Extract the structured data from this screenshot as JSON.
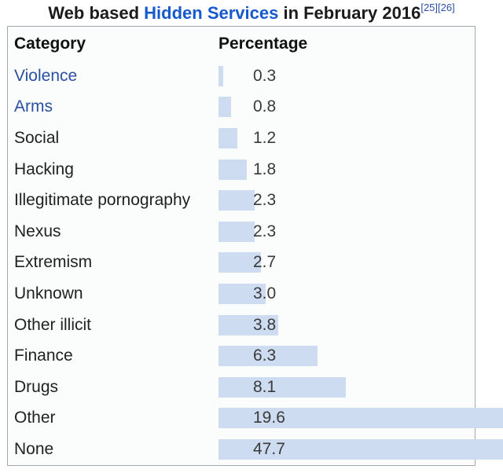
{
  "title": {
    "prefix": "Web based ",
    "link_text": "Hidden Services",
    "suffix": " in February 2016",
    "citations": [
      "[25]",
      "[26]"
    ]
  },
  "table": {
    "header_category": "Category",
    "header_percentage": "Percentage",
    "rows": [
      {
        "category": "Violence",
        "value": 0.3,
        "display": "0.3",
        "is_link": true
      },
      {
        "category": "Arms",
        "value": 0.8,
        "display": "0.8",
        "is_link": true
      },
      {
        "category": "Social",
        "value": 1.2,
        "display": "1.2",
        "is_link": false
      },
      {
        "category": "Hacking",
        "value": 1.8,
        "display": "1.8",
        "is_link": false
      },
      {
        "category": "Illegitimate pornography",
        "value": 2.3,
        "display": "2.3",
        "is_link": false
      },
      {
        "category": "Nexus",
        "value": 2.3,
        "display": "2.3",
        "is_link": false
      },
      {
        "category": "Extremism",
        "value": 2.7,
        "display": "2.7",
        "is_link": false
      },
      {
        "category": "Unknown",
        "value": 3.0,
        "display": "3.0",
        "is_link": false
      },
      {
        "category": "Other illicit",
        "value": 3.8,
        "display": "3.8",
        "is_link": false
      },
      {
        "category": "Finance",
        "value": 6.3,
        "display": "6.3",
        "is_link": false
      },
      {
        "category": "Drugs",
        "value": 8.1,
        "display": "8.1",
        "is_link": false
      },
      {
        "category": "Other",
        "value": 19.6,
        "display": "19.6",
        "is_link": false
      },
      {
        "category": "None",
        "value": 47.7,
        "display": "47.7",
        "is_link": false
      }
    ]
  },
  "chart_data": {
    "type": "bar",
    "orientation": "horizontal",
    "title": "Web based Hidden Services in February 2016",
    "citations": [
      "[25]",
      "[26]"
    ],
    "xlabel": "Percentage",
    "ylabel": "Category",
    "categories": [
      "Violence",
      "Arms",
      "Social",
      "Hacking",
      "Illegitimate pornography",
      "Nexus",
      "Extremism",
      "Unknown",
      "Other illicit",
      "Finance",
      "Drugs",
      "Other",
      "None"
    ],
    "values": [
      0.3,
      0.8,
      1.2,
      1.8,
      2.3,
      2.3,
      2.7,
      3.0,
      3.8,
      6.3,
      8.1,
      19.6,
      47.7
    ],
    "unit": "percent",
    "grid": false,
    "legend": false,
    "bars_clipped_at_right_edge": [
      "Other",
      "None"
    ]
  },
  "colors": {
    "bar_fill": "#cddcf0",
    "table_border": "#a2a9b1",
    "table_background": "#fbfcfc",
    "label_text": "#202122",
    "value_text": "#3a3a3a",
    "title_text": "#1b1b1b",
    "title_link": "#1659cd",
    "table_link": "#2b4fa2",
    "citation_link": "#2b4fa8"
  }
}
